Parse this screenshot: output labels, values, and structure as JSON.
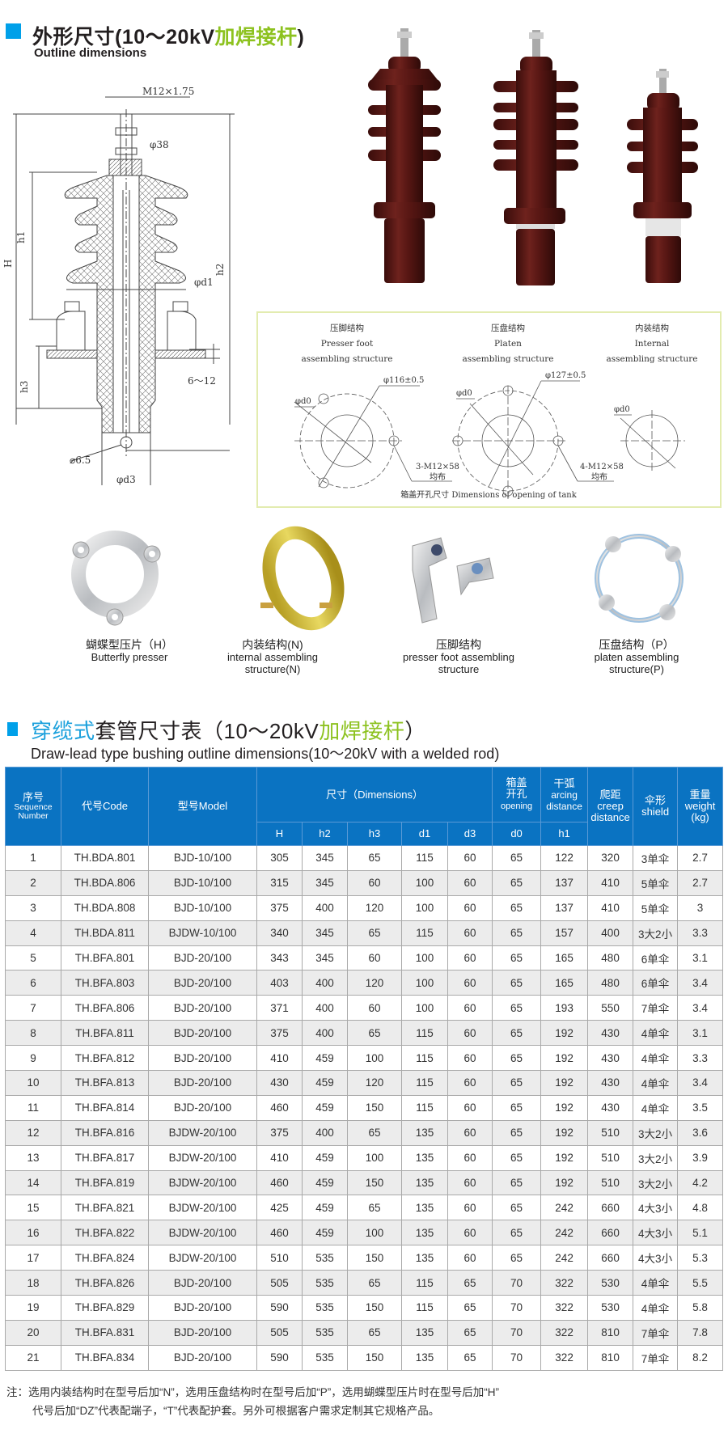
{
  "section1": {
    "title_main": "外形尺寸(10～20kV",
    "title_accent": "加焊接杆",
    "title_close": ")",
    "subtitle": "Outline dimensions"
  },
  "drawing_labels": {
    "thread": "M12×1.75",
    "d38": "φ38",
    "h1": "h1",
    "H": "H",
    "h2": "h2",
    "d1": "φd1",
    "h3": "h3",
    "gap": "6～12",
    "hole": "⌀6.5",
    "d3": "φd3"
  },
  "tank_panel": {
    "presser_cn": "压脚结构",
    "presser_en1": "Presser foot",
    "presser_en2": "assembling structure",
    "platen_cn": "压盘结构",
    "platen_en1": "Platen",
    "platen_en2": "assembling structure",
    "internal_cn": "内装结构",
    "internal_en1": "Internal",
    "internal_en2": "assembling structure",
    "d0": "φd0",
    "dia116": "φ116±0.5",
    "dia127": "φ127±0.5",
    "holes3": "3-M12×58",
    "holes4": "4-M12×58",
    "even": "均布",
    "caption": "箱盖开孔尺寸 Dimensions of opening of tank"
  },
  "accessories": [
    {
      "cn": "蝴蝶型压片（H）",
      "en": "Butterfly  presser"
    },
    {
      "cn": "内装结构(N)",
      "en": "internal  assembling structure(N)"
    },
    {
      "cn": "压脚结构",
      "en": "presser  foot  assembling structure"
    },
    {
      "cn": "压盘结构（P）",
      "en": "platen  assembling structure(P)"
    }
  ],
  "section2": {
    "title_accent": "穿缆式",
    "title_main": "套管尺寸表（10～20kV",
    "title_accent2": "加焊接杆",
    "title_close": "）",
    "subtitle": "Draw-lead type bushing outline dimensions(10～20kV with a welded rod)"
  },
  "table": {
    "headers": {
      "seq_cn": "序号",
      "seq_en": "Sequence Number",
      "code": "代号Code",
      "model": "型号Model",
      "dims": "尺寸（Dimensions）",
      "opening_cn": "箱盖开孔",
      "opening_en": "opening",
      "arcing_cn": "干弧",
      "arcing_en": "arcing distance",
      "creep_cn": "爬距",
      "creep_en": "creep distance",
      "shield_cn": "伞形",
      "shield_en": "shield",
      "weight_cn": "重量",
      "weight_en": "weight (kg)",
      "sub": [
        "H",
        "h2",
        "h3",
        "d1",
        "d3",
        "d0",
        "h1"
      ]
    },
    "rows": [
      [
        "1",
        "TH.BDA.801",
        "BJD-10/100",
        "305",
        "345",
        "65",
        "115",
        "60",
        "65",
        "122",
        "320",
        "3单伞",
        "2.7"
      ],
      [
        "2",
        "TH.BDA.806",
        "BJD-10/100",
        "315",
        "345",
        "60",
        "100",
        "60",
        "65",
        "137",
        "410",
        "5单伞",
        "2.7"
      ],
      [
        "3",
        "TH.BDA.808",
        "BJD-10/100",
        "375",
        "400",
        "120",
        "100",
        "60",
        "65",
        "137",
        "410",
        "5单伞",
        "3"
      ],
      [
        "4",
        "TH.BDA.811",
        "BJDW-10/100",
        "340",
        "345",
        "65",
        "115",
        "60",
        "65",
        "157",
        "400",
        "3大2小",
        "3.3"
      ],
      [
        "5",
        "TH.BFA.801",
        "BJD-20/100",
        "343",
        "345",
        "60",
        "100",
        "60",
        "65",
        "165",
        "480",
        "6单伞",
        "3.1"
      ],
      [
        "6",
        "TH.BFA.803",
        "BJD-20/100",
        "403",
        "400",
        "120",
        "100",
        "60",
        "65",
        "165",
        "480",
        "6单伞",
        "3.4"
      ],
      [
        "7",
        "TH.BFA.806",
        "BJD-20/100",
        "371",
        "400",
        "60",
        "100",
        "60",
        "65",
        "193",
        "550",
        "7单伞",
        "3.4"
      ],
      [
        "8",
        "TH.BFA.811",
        "BJD-20/100",
        "375",
        "400",
        "65",
        "115",
        "60",
        "65",
        "192",
        "430",
        "4单伞",
        "3.1"
      ],
      [
        "9",
        "TH.BFA.812",
        "BJD-20/100",
        "410",
        "459",
        "100",
        "115",
        "60",
        "65",
        "192",
        "430",
        "4单伞",
        "3.3"
      ],
      [
        "10",
        "TH.BFA.813",
        "BJD-20/100",
        "430",
        "459",
        "120",
        "115",
        "60",
        "65",
        "192",
        "430",
        "4单伞",
        "3.4"
      ],
      [
        "11",
        "TH.BFA.814",
        "BJD-20/100",
        "460",
        "459",
        "150",
        "115",
        "60",
        "65",
        "192",
        "430",
        "4单伞",
        "3.5"
      ],
      [
        "12",
        "TH.BFA.816",
        "BJDW-20/100",
        "375",
        "400",
        "65",
        "135",
        "60",
        "65",
        "192",
        "510",
        "3大2小",
        "3.6"
      ],
      [
        "13",
        "TH.BFA.817",
        "BJDW-20/100",
        "410",
        "459",
        "100",
        "135",
        "60",
        "65",
        "192",
        "510",
        "3大2小",
        "3.9"
      ],
      [
        "14",
        "TH.BFA.819",
        "BJDW-20/100",
        "460",
        "459",
        "150",
        "135",
        "60",
        "65",
        "192",
        "510",
        "3大2小",
        "4.2"
      ],
      [
        "15",
        "TH.BFA.821",
        "BJDW-20/100",
        "425",
        "459",
        "65",
        "135",
        "60",
        "65",
        "242",
        "660",
        "4大3小",
        "4.8"
      ],
      [
        "16",
        "TH.BFA.822",
        "BJDW-20/100",
        "460",
        "459",
        "100",
        "135",
        "60",
        "65",
        "242",
        "660",
        "4大3小",
        "5.1"
      ],
      [
        "17",
        "TH.BFA.824",
        "BJDW-20/100",
        "510",
        "535",
        "150",
        "135",
        "60",
        "65",
        "242",
        "660",
        "4大3小",
        "5.3"
      ],
      [
        "18",
        "TH.BFA.826",
        "BJD-20/100",
        "505",
        "535",
        "65",
        "115",
        "65",
        "70",
        "322",
        "530",
        "4单伞",
        "5.5"
      ],
      [
        "19",
        "TH.BFA.829",
        "BJD-20/100",
        "590",
        "535",
        "150",
        "115",
        "65",
        "70",
        "322",
        "530",
        "4单伞",
        "5.8"
      ],
      [
        "20",
        "TH.BFA.831",
        "BJD-20/100",
        "505",
        "535",
        "65",
        "135",
        "65",
        "70",
        "322",
        "810",
        "7单伞",
        "7.8"
      ],
      [
        "21",
        "TH.BFA.834",
        "BJD-20/100",
        "590",
        "535",
        "150",
        "135",
        "65",
        "70",
        "322",
        "810",
        "7单伞",
        "8.2"
      ]
    ]
  },
  "notes": {
    "line1": "注：选用内装结构时在型号后加“N”，选用压盘结构时在型号后加“P”，选用蝴蝶型压片时在型号后加“H”",
    "line2": "代号后加“DZ”代表配端子，“T”代表配护套。另外可根据客户需求定制其它规格产品。"
  },
  "colors": {
    "accent_blue": "#00a0e9",
    "accent_green": "#8dc21f",
    "table_header": "#0a73c2",
    "porcelain_brown": "#5a1714"
  }
}
